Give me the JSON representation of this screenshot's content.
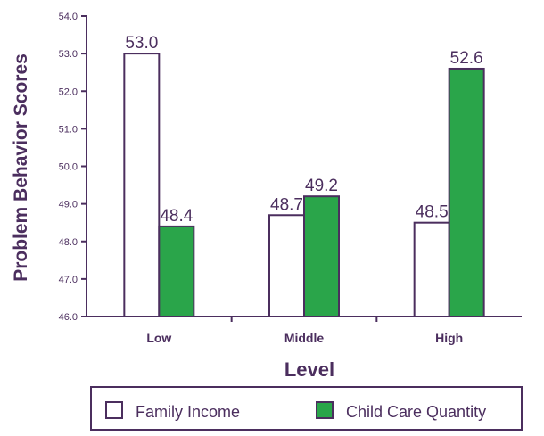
{
  "chart_data": {
    "type": "bar",
    "categories": [
      "Low",
      "Middle",
      "High"
    ],
    "series": [
      {
        "name": "Family Income",
        "values": [
          53.0,
          48.7,
          48.5
        ],
        "labels": [
          "53.0",
          "48.7",
          "48.5"
        ],
        "color": "#ffffff"
      },
      {
        "name": "Child Care Quantity",
        "values": [
          48.4,
          49.2,
          52.6
        ],
        "labels": [
          "48.4",
          "49.2",
          "52.6"
        ],
        "color": "#2aa54a"
      }
    ],
    "xlabel": "Level",
    "ylabel": "Problem Behavior Scores",
    "ylim": [
      46.0,
      54.0
    ],
    "yticks": [
      "46.0",
      "47.0",
      "48.0",
      "49.0",
      "50.0",
      "51.0",
      "52.0",
      "53.0",
      "54.0"
    ],
    "grid": false,
    "legend_placement": "bottom",
    "colors": {
      "axis": "#4b2e5e",
      "bar_outline": "#4b2e5e"
    }
  }
}
